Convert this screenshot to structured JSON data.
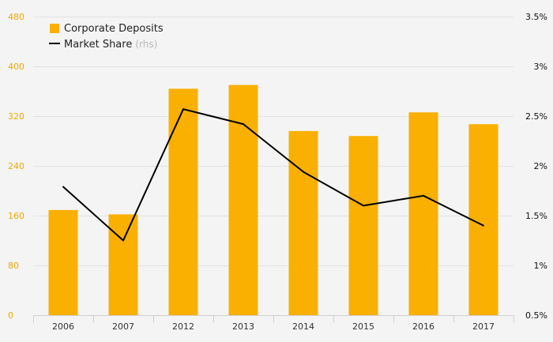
{
  "chart_data": {
    "type": "bar",
    "categories": [
      "2006",
      "2007",
      "2012",
      "2013",
      "2014",
      "2015",
      "2016",
      "2017"
    ],
    "series": [
      {
        "name": "Corporate Deposits",
        "type": "bar",
        "axis": "left",
        "color": "#f9b000",
        "values": [
          169,
          162,
          364,
          370,
          296,
          288,
          326,
          307
        ]
      },
      {
        "name": "Market Share",
        "type": "line",
        "axis": "right",
        "color": "#000000",
        "values": [
          1.79,
          1.25,
          2.57,
          2.42,
          1.94,
          1.6,
          1.7,
          1.4
        ]
      }
    ],
    "y_left": {
      "ylim": [
        0,
        480
      ],
      "ticks": [
        "0",
        "80",
        "160",
        "240",
        "320",
        "400",
        "480"
      ],
      "tick_values": [
        0,
        80,
        160,
        240,
        320,
        400,
        480
      ],
      "color": "#f0a800"
    },
    "y_right": {
      "ylim": [
        0.5,
        3.5
      ],
      "ticks": [
        "0.5%",
        "1%",
        "1.5%",
        "2%",
        "2.5%",
        "3%",
        "3.5%"
      ],
      "tick_values": [
        0.5,
        1,
        1.5,
        2,
        2.5,
        3,
        3.5
      ],
      "color": "#111111"
    },
    "legend": {
      "position": "top-left",
      "items": [
        {
          "label": "Corporate Deposits",
          "marker": "square",
          "color": "#f9b000"
        },
        {
          "label": "Market Share",
          "note": "(rhs)",
          "marker": "line",
          "color": "#000000"
        }
      ]
    },
    "grid": true,
    "title": "",
    "xlabel": "",
    "ylabel": ""
  }
}
